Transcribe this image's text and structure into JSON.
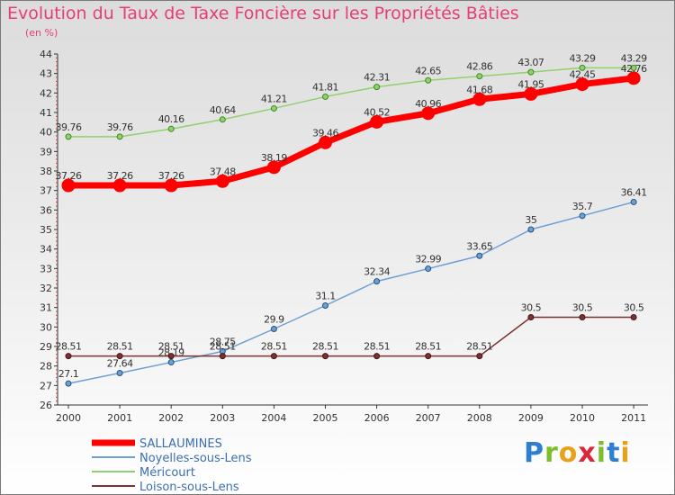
{
  "chart_data": {
    "type": "line",
    "title": "Evolution du Taux de Taxe Foncière sur les Propriétés Bâties",
    "ylabel": "(en %)",
    "x": [
      "2000",
      "2001",
      "2002",
      "2003",
      "2004",
      "2005",
      "2006",
      "2007",
      "2008",
      "2009",
      "2010",
      "2011"
    ],
    "ylim": [
      26,
      44
    ],
    "yticks": [
      "26",
      "27",
      "28",
      "29",
      "30",
      "31",
      "32",
      "33",
      "34",
      "35",
      "36",
      "37",
      "38",
      "39",
      "40",
      "41",
      "42",
      "43",
      "44"
    ],
    "series": [
      {
        "name": "Méricourt",
        "color": "#8fd16f",
        "values": [
          39.76,
          39.76,
          40.16,
          40.64,
          41.21,
          41.81,
          42.31,
          42.65,
          42.86,
          43.07,
          43.29,
          43.29
        ],
        "labels": [
          "39.76",
          "39.76",
          "40.16",
          "40.64",
          "41.21",
          "41.81",
          "42.31",
          "42.65",
          "42.86",
          "43.07",
          "43.29",
          "43.29"
        ]
      },
      {
        "name": "SALLAUMINES",
        "color": "#ff0000",
        "values": [
          37.26,
          37.26,
          37.26,
          37.48,
          38.19,
          39.46,
          40.52,
          40.96,
          41.68,
          41.95,
          42.45,
          42.76
        ],
        "labels": [
          "37.26",
          "37.26",
          "37.26",
          "37.48",
          "38.19",
          "39.46",
          "40.52",
          "40.96",
          "41.68",
          "41.95",
          "42.45",
          "42.76"
        ]
      },
      {
        "name": "Noyelles-sous-Lens",
        "color": "#6c9fd4",
        "values": [
          27.1,
          27.64,
          28.19,
          28.75,
          29.9,
          31.1,
          32.34,
          32.99,
          33.65,
          35,
          35.7,
          36.41
        ],
        "labels": [
          "27.1",
          "27.64",
          "28.19",
          "28.75",
          "29.9",
          "31.1",
          "32.34",
          "32.99",
          "33.65",
          "35",
          "35.7",
          "36.41"
        ]
      },
      {
        "name": "Loison-sous-Lens",
        "color": "#7a3232",
        "values": [
          28.51,
          28.51,
          28.51,
          28.51,
          28.51,
          28.51,
          28.51,
          28.51,
          28.51,
          30.5,
          30.5,
          30.5
        ],
        "labels": [
          "28.51",
          "28.51",
          "28.51",
          "28.51",
          "28.51",
          "28.51",
          "28.51",
          "28.51",
          "28.51",
          "30.5",
          "30.5",
          "30.5"
        ]
      }
    ],
    "legend_order": [
      "SALLAUMINES",
      "Noyelles-sous-Lens",
      "Méricourt",
      "Loison-sous-Lens"
    ],
    "legend_placement": "bottom-left",
    "grid": false
  },
  "logo": {
    "letters": [
      "P",
      "r",
      "o",
      "x",
      "i",
      "t",
      "i"
    ],
    "colors": [
      "#2e7fd1",
      "#7cbf2a",
      "#e8a21a",
      "#d8283a",
      "#7cbf2a",
      "#2e7fd1",
      "#e8a21a"
    ]
  }
}
